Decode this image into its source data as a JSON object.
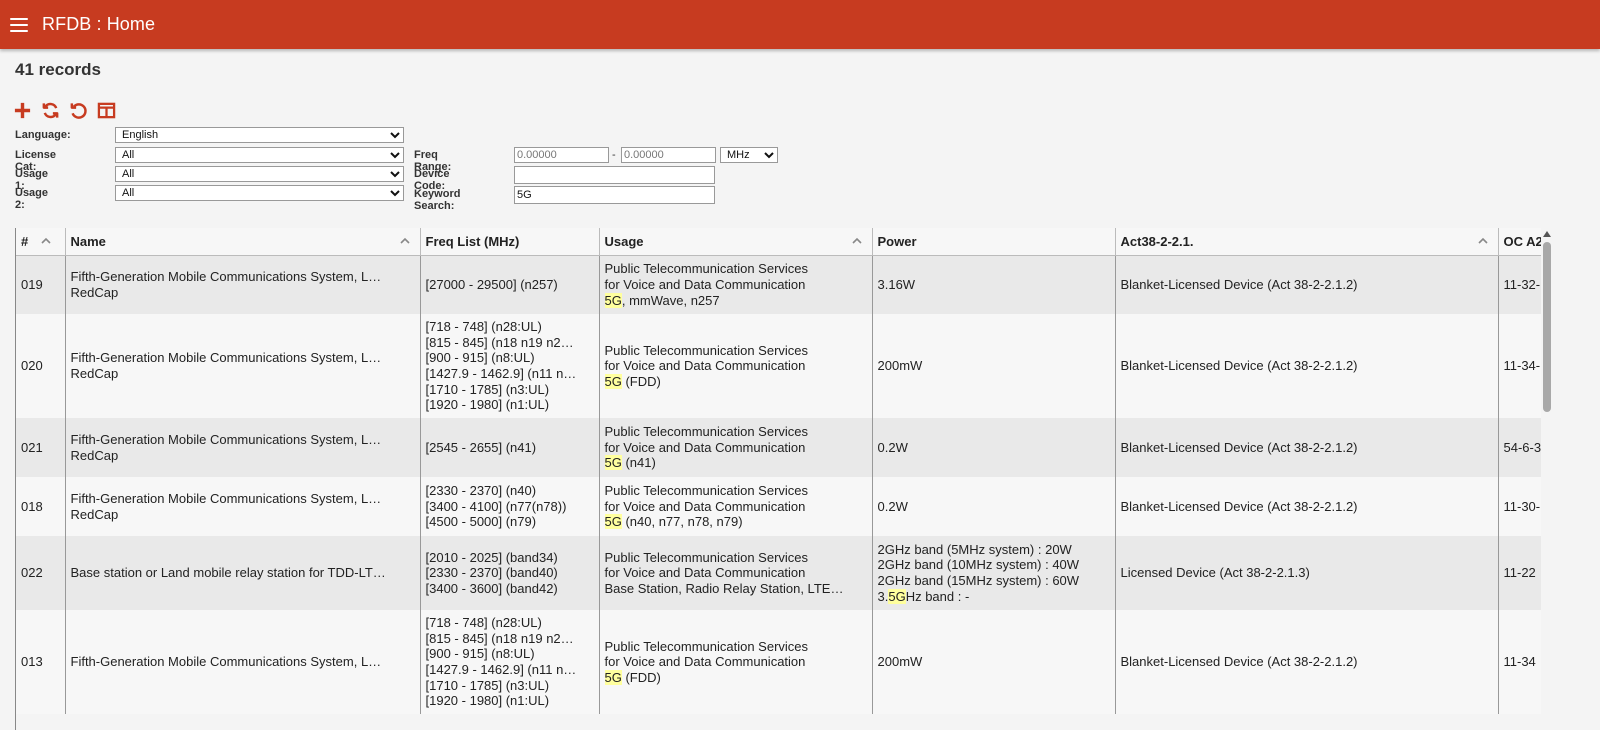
{
  "header": {
    "title": "RFDB : Home",
    "menu_icon": "hamburger-menu-icon"
  },
  "records_label": "41 records",
  "toolbar": {
    "icons": [
      "add-icon",
      "refresh-icon",
      "reset-icon",
      "columns-icon"
    ],
    "accent": "#c73b20"
  },
  "filters": {
    "language": {
      "label": "Language:",
      "value": "English"
    },
    "license_cat": {
      "label": "License Cat:",
      "value": "All"
    },
    "usage1": {
      "label": "Usage 1:",
      "value": "All"
    },
    "usage2": {
      "label": "Usage 2:",
      "value": "All"
    },
    "freq_range": {
      "label": "Freq Range:",
      "from": "0.00000",
      "to": "0.00000",
      "separator": "-",
      "unit": "MHz"
    },
    "device_code": {
      "label": "Device Code:",
      "value": ""
    },
    "keyword": {
      "label": "Keyword Search:",
      "value": "5G"
    }
  },
  "table": {
    "columns": [
      "#",
      "Name",
      "Freq List (MHz)",
      "Usage",
      "Power",
      "Act38-2-2.1.",
      "OC A2"
    ],
    "rows": [
      {
        "num": "019",
        "name": [
          "Fifth-Generation Mobile Communications System, L…",
          "RedCap"
        ],
        "freq": [
          "[27000 - 29500] (n257)"
        ],
        "usage": [
          "Public Telecommunication Services",
          "for Voice and Data Communication"
        ],
        "usage_hl": "5G",
        "usage_tail": ", mmWave, n257",
        "power": [
          "3.16W"
        ],
        "act": "Blanket-Licensed Device (Act 38-2-2.1.2)",
        "oc": "11-32-"
      },
      {
        "num": "020",
        "name": [
          "Fifth-Generation Mobile Communications System, L…",
          "RedCap"
        ],
        "freq": [
          "[718 - 748] (n28:UL)",
          "[815 - 845] (n18 n19 n2…",
          "[900 - 915] (n8:UL)",
          "[1427.9 - 1462.9] (n11 n…",
          "[1710 - 1785] (n3:UL)",
          "[1920 - 1980] (n1:UL)"
        ],
        "usage": [
          "Public Telecommunication Services",
          "for Voice and Data Communication"
        ],
        "usage_hl": "5G",
        "usage_tail": " (FDD)",
        "power": [
          "200mW"
        ],
        "act": "Blanket-Licensed Device (Act 38-2-2.1.2)",
        "oc": "11-34-"
      },
      {
        "num": "021",
        "name": [
          "Fifth-Generation Mobile Communications System, L…",
          "RedCap"
        ],
        "freq": [
          "[2545 - 2655] (n41)"
        ],
        "usage": [
          "Public Telecommunication Services",
          "for Voice and Data Communication"
        ],
        "usage_hl": "5G",
        "usage_tail": " (n41)",
        "power": [
          "0.2W"
        ],
        "act": "Blanket-Licensed Device (Act 38-2-2.1.2)",
        "oc": "54-6-3"
      },
      {
        "num": "018",
        "name": [
          "Fifth-Generation Mobile Communications System, L…",
          "RedCap"
        ],
        "freq": [
          "[2330 - 2370] (n40)",
          "[3400 - 4100] (n77(n78))",
          "[4500 - 5000] (n79)"
        ],
        "usage": [
          "Public Telecommunication Services",
          "for Voice and Data Communication"
        ],
        "usage_hl": "5G",
        "usage_tail": " (n40, n77, n78, n79)",
        "power": [
          "0.2W"
        ],
        "act": "Blanket-Licensed Device (Act 38-2-2.1.2)",
        "oc": "11-30-"
      },
      {
        "num": "022",
        "name": [
          "Base station or Land mobile relay station for TDD-LT…"
        ],
        "freq": [
          "[2010 - 2025] (band34)",
          "[2330 - 2370] (band40)",
          "[3400 - 3600] (band42)"
        ],
        "usage": [
          "Public Telecommunication Services",
          "for Voice and Data Communication",
          "Base Station, Radio Relay Station, LTE…"
        ],
        "usage_hl": "",
        "usage_tail": "",
        "power": [
          "2GHz band (5MHz system) : 20W",
          "2GHz band (10MHz system) : 40W",
          "2GHz band (15MHz system) : 60W"
        ],
        "power_hl_pre": "3.",
        "power_hl": "5G",
        "power_hl_post": "Hz band : -",
        "act": "Licensed Device (Act 38-2-2.1.3)",
        "oc": "11-22"
      },
      {
        "num": "013",
        "name": [
          "Fifth-Generation Mobile Communications System, L…"
        ],
        "freq": [
          "[718 - 748] (n28:UL)",
          "[815 - 845] (n18 n19 n2…",
          "[900 - 915] (n8:UL)",
          "[1427.9 - 1462.9] (n11 n…",
          "[1710 - 1785] (n3:UL)",
          "[1920 - 1980] (n1:UL)"
        ],
        "usage": [
          "Public Telecommunication Services",
          "for Voice and Data Communication"
        ],
        "usage_hl": "5G",
        "usage_tail": " (FDD)",
        "power": [
          "200mW"
        ],
        "act": "Blanket-Licensed Device (Act 38-2-2.1.2)",
        "oc": "11-34"
      }
    ]
  }
}
